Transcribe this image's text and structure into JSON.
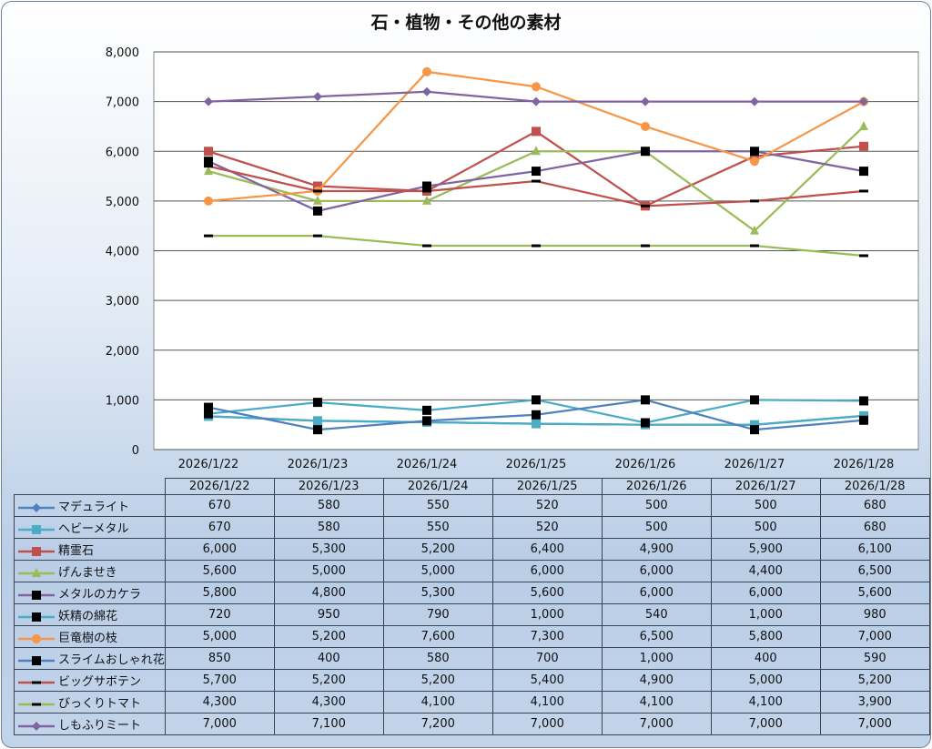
{
  "title": "石・植物・その他の素材",
  "chart_data": {
    "type": "line",
    "title": "石・植物・その他の素材",
    "categories": [
      "2026/1/22",
      "2026/1/23",
      "2026/1/24",
      "2026/1/25",
      "2026/1/26",
      "2026/1/27",
      "2026/1/28"
    ],
    "ylim": [
      0,
      8000
    ],
    "yticks": [
      0,
      1000,
      2000,
      3000,
      4000,
      5000,
      6000,
      7000,
      8000
    ],
    "ytick_labels": [
      "0",
      "1,000",
      "2,000",
      "3,000",
      "4,000",
      "5,000",
      "6,000",
      "7,000",
      "8,000"
    ],
    "grid": true,
    "legend": "data-table-bottom",
    "series": [
      {
        "name": "マデュライト",
        "color": "#4F81BD",
        "marker": "diamond",
        "markerColor": "#4F81BD",
        "values": [
          670,
          580,
          550,
          520,
          500,
          500,
          680
        ]
      },
      {
        "name": "ヘビーメタル",
        "color": "#4BACC6",
        "marker": "square",
        "markerColor": "#4BACC6",
        "values": [
          670,
          580,
          550,
          520,
          500,
          500,
          680
        ]
      },
      {
        "name": "精霊石",
        "color": "#C0504D",
        "marker": "square",
        "markerColor": "#C0504D",
        "values": [
          6000,
          5300,
          5200,
          6400,
          4900,
          5900,
          6100
        ]
      },
      {
        "name": "げんませき",
        "color": "#9BBB59",
        "marker": "triangle",
        "markerColor": "#9BBB59",
        "values": [
          5600,
          5000,
          5000,
          6000,
          6000,
          4400,
          6500
        ]
      },
      {
        "name": "メタルのカケラ",
        "color": "#8064A2",
        "marker": "square",
        "markerColor": "#000000",
        "values": [
          5800,
          4800,
          5300,
          5600,
          6000,
          6000,
          5600
        ]
      },
      {
        "name": "妖精の綿花",
        "color": "#4BACC6",
        "marker": "square",
        "markerColor": "#000000",
        "values": [
          720,
          950,
          790,
          1000,
          540,
          1000,
          980
        ]
      },
      {
        "name": "巨竜樹の枝",
        "color": "#F79646",
        "marker": "circle",
        "markerColor": "#F79646",
        "values": [
          5000,
          5200,
          7600,
          7300,
          6500,
          5800,
          7000
        ]
      },
      {
        "name": "スライムおしゃれ花",
        "color": "#4F81BD",
        "marker": "square",
        "markerColor": "#000000",
        "values": [
          850,
          400,
          580,
          700,
          1000,
          400,
          590
        ]
      },
      {
        "name": "ビッグサボテン",
        "color": "#C0504D",
        "marker": "dash",
        "markerColor": "#000000",
        "values": [
          5700,
          5200,
          5200,
          5400,
          4900,
          5000,
          5200
        ]
      },
      {
        "name": "びっくりトマト",
        "color": "#9BBB59",
        "marker": "dash",
        "markerColor": "#000000",
        "values": [
          4300,
          4300,
          4100,
          4100,
          4100,
          4100,
          3900
        ]
      },
      {
        "name": "しもふりミート",
        "color": "#8064A2",
        "marker": "diamond",
        "markerColor": "#8064A2",
        "values": [
          7000,
          7100,
          7200,
          7000,
          7000,
          7000,
          7000
        ]
      }
    ]
  }
}
